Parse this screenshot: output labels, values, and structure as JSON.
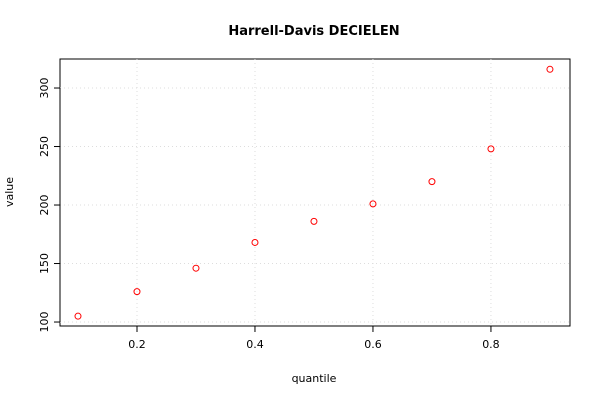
{
  "chart_data": {
    "type": "scatter",
    "title": "Harrell-Davis DECIELEN",
    "x_label": "quantile",
    "y_label": "value",
    "x": [
      0.1,
      0.2,
      0.3,
      0.4,
      0.5,
      0.6,
      0.7,
      0.8,
      0.9
    ],
    "values": [
      105,
      126,
      146,
      168,
      186,
      201,
      220,
      248,
      316
    ],
    "color": "#ff0000",
    "xlim": [
      0.0695,
      0.934
    ],
    "ylim": [
      96.6,
      324.8
    ],
    "xticks": [
      0.2,
      0.4,
      0.6,
      0.8
    ],
    "yticks": [
      100,
      150,
      200,
      250,
      300
    ],
    "grid": true
  }
}
